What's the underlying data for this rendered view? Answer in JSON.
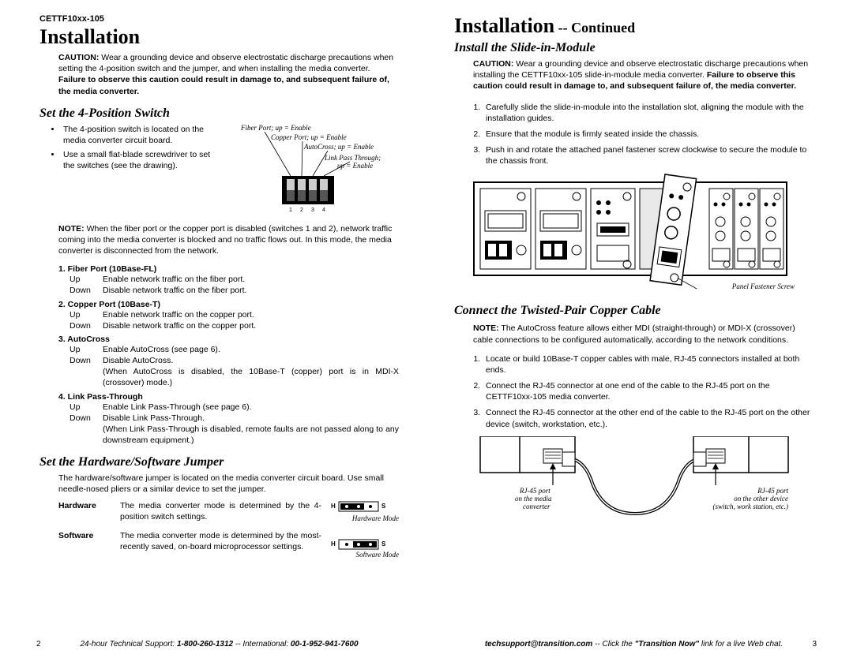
{
  "model": "CETTF10xx-105",
  "left": {
    "h1": "Installation",
    "caution": {
      "lead": "CAUTION:",
      "text": " Wear a grounding device and observe electrostatic discharge precautions when setting the 4-position switch and the jumper, and when installing the media converter.  ",
      "bold": "Failure to observe this caution could result in damage to, and subsequent failure of, the media converter."
    },
    "sec1": {
      "title": "Set the 4-Position Switch",
      "bullets": [
        "The 4-position switch is located on the media converter circuit board.",
        "Use a small flat-blade screwdriver to set the switches (see the drawing)."
      ],
      "labels": {
        "l1": "Fiber Port; up = Enable",
        "l2": "Copper Port; up = Enable",
        "l3": "AutoCross; up = Enable",
        "l4a": "Link Pass Through;",
        "l4b": "up = Enable",
        "n1": "1",
        "n2": "2",
        "n3": "3",
        "n4": "4"
      },
      "note": {
        "lead": "NOTE:",
        "text": " When the fiber port or the copper port is disabled (switches 1 and 2), network traffic coming into the media converter is blocked and no traffic flows out.  In this mode, the media converter is disconnected from the network."
      },
      "switches": [
        {
          "num": "1. Fiber Port (10Base-FL)",
          "rows": [
            {
              "pos": "Up",
              "desc": "Enable network traffic on the fiber port."
            },
            {
              "pos": "Down",
              "desc": "Disable network traffic on the fiber port."
            }
          ]
        },
        {
          "num": "2. Copper Port (10Base-T)",
          "rows": [
            {
              "pos": "Up",
              "desc": "Enable network traffic on the copper port."
            },
            {
              "pos": "Down",
              "desc": "Disable network traffic on the copper port."
            }
          ]
        },
        {
          "num": "3. AutoCross",
          "rows": [
            {
              "pos": "Up",
              "desc": "Enable AutoCross (see page 6)."
            },
            {
              "pos": "Down",
              "desc": "Disable AutoCross."
            },
            {
              "pos": "",
              "desc": "(When AutoCross is disabled, the 10Base-T (copper) port is in MDI-X (crossover) mode.)"
            }
          ]
        },
        {
          "num": "4. Link Pass-Through",
          "rows": [
            {
              "pos": "Up",
              "desc": "Enable Link Pass-Through (see page 6)."
            },
            {
              "pos": "Down",
              "desc": "Disable Link Pass-Through."
            },
            {
              "pos": "",
              "desc": "(When Link Pass-Through is disabled, remote faults are not passed along to any downstream equipment.)"
            }
          ]
        }
      ]
    },
    "sec2": {
      "title": "Set the Hardware/Software Jumper",
      "intro": "The hardware/software jumper is located on the media converter circuit board.  Use small needle-nosed pliers or a similar device to set the jumper.",
      "rows": [
        {
          "lbl": "Hardware",
          "txt": "The media converter mode is determined by the 4-position switch settings.",
          "mode": "Hardware Mode"
        },
        {
          "lbl": "Software",
          "txt": "The media converter mode is determined by the most-recently saved, on-board microprocessor settings.",
          "mode": "Software Mode"
        }
      ],
      "H": "H",
      "S": "S"
    },
    "footer": {
      "pg": "2",
      "text1": "24-hour Technical Support: ",
      "b1": "1-800-260-1312",
      "text2": " -- International: ",
      "b2": "00-1-952-941-7600"
    }
  },
  "right": {
    "h1a": "Installation",
    "h1b": " -- Continued",
    "sec1": {
      "title": "Install the Slide-in-Module",
      "caution": {
        "lead": "CAUTION:",
        "text": "  Wear a grounding device and observe electrostatic discharge precautions when installing the CETTF10xx-105 slide-in-module media converter.  ",
        "bold": "Failure to observe this caution could result in damage to, and subsequent failure of, the media converter."
      },
      "steps": [
        "Carefully slide the slide-in-module into the installation slot, aligning the module with the installation guides.",
        "Ensure that the module is firmly seated inside the chassis.",
        "Push in and rotate the attached panel fastener screw clockwise to secure the module to the chassis front."
      ],
      "panelLabel": "Panel Fastener Screw"
    },
    "sec2": {
      "title": "Connect the Twisted-Pair Copper Cable",
      "note": {
        "lead": "NOTE:",
        "text": "  The AutoCross feature allows either MDI (straight-through) or MDI-X (crossover) cable connections to be configured automatically, according to the network conditions."
      },
      "steps": [
        "Locate or build 10Base-T copper cables with male, RJ-45 connectors installed at both ends.",
        "Connect the RJ-45 connector at one end of the cable to the RJ-45 port on the CETTF10xx-105 media converter.",
        "Connect the RJ-45 connector at the other end of the cable to the RJ-45 port on the other device (switch, workstation, etc.)."
      ],
      "cable": {
        "leftA": "RJ-45 port",
        "leftB": "on the media",
        "leftC": "converter",
        "rightA": "RJ-45 port",
        "rightB": "on the other device",
        "rightC": "(switch, work station, etc.)"
      }
    },
    "footer": {
      "pg": "3",
      "b1": "techsupport@transition.com",
      "text1": " -- Click the ",
      "b2": "\"Transition Now\"",
      "text2": " link for a live Web chat."
    }
  }
}
